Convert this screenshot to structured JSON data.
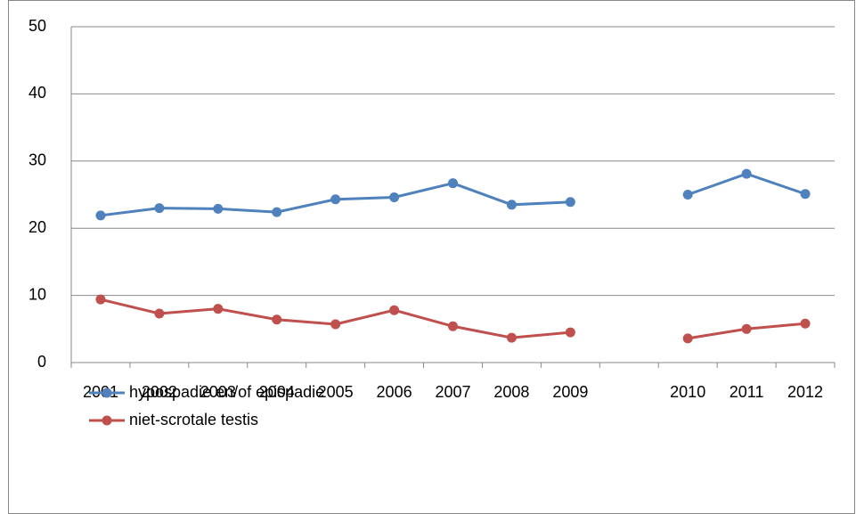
{
  "chart_data": {
    "type": "line",
    "categories": [
      "2001",
      "2002",
      "2003",
      "2004",
      "2005",
      "2006",
      "2007",
      "2008",
      "2009",
      null,
      "2010",
      "2011",
      "2012"
    ],
    "series": [
      {
        "name": "hypospadie en/of epispadie",
        "color": "#4f81bd",
        "values": [
          21.9,
          23.0,
          22.9,
          22.4,
          24.3,
          24.6,
          26.7,
          23.5,
          23.9,
          null,
          25.0,
          28.1,
          25.1
        ]
      },
      {
        "name": "niet-scrotale testis",
        "color": "#c0504d",
        "values": [
          9.4,
          7.3,
          8.0,
          6.4,
          5.7,
          7.8,
          5.4,
          3.7,
          4.5,
          null,
          3.6,
          5.0,
          5.8
        ]
      }
    ],
    "ylim": [
      0,
      50
    ],
    "yticks": [
      0,
      10,
      20,
      30,
      40,
      50
    ],
    "grid": true,
    "legend": "bottom-left"
  }
}
